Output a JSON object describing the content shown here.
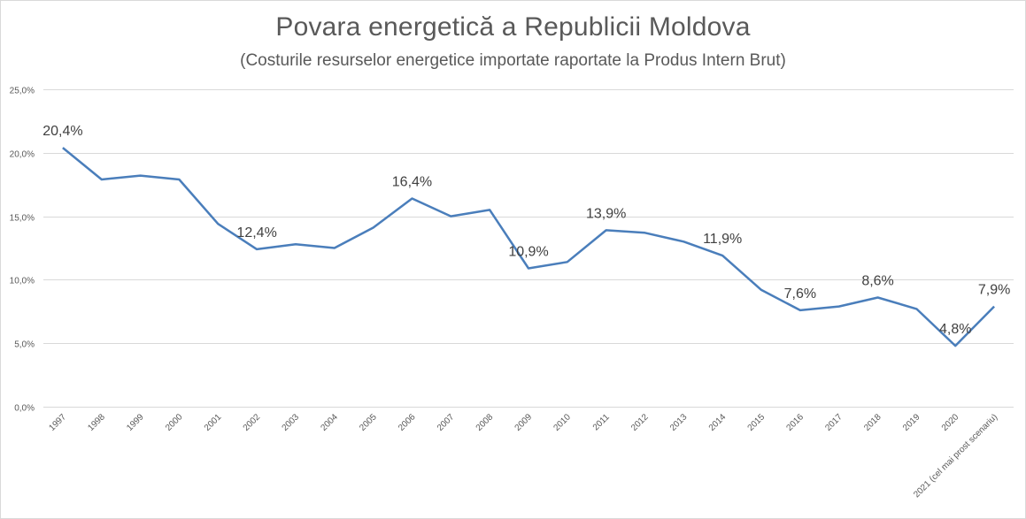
{
  "chart_data": {
    "type": "line",
    "title": "Povara energetică  a Republicii  Moldova",
    "subtitle": "(Costurile resurselor energetice importate raportate la Produs Intern Brut)",
    "xlabel": "",
    "ylabel": "",
    "ylim": [
      0,
      25
    ],
    "y_ticks": [
      0,
      5,
      10,
      15,
      20,
      25
    ],
    "y_tick_labels": [
      "0,0%",
      "5,0%",
      "10,0%",
      "15,0%",
      "20,0%",
      "25,0%"
    ],
    "grid": true,
    "legend": "none",
    "categories": [
      "1997",
      "1998",
      "1999",
      "2000",
      "2001",
      "2002",
      "2003",
      "2004",
      "2005",
      "2006",
      "2007",
      "2008",
      "2009",
      "2010",
      "2011",
      "2012",
      "2013",
      "2014",
      "2015",
      "2016",
      "2017",
      "2018",
      "2019",
      "2020",
      "2021 (cel mai prost scenariu)"
    ],
    "series": [
      {
        "name": "Povara energetică",
        "color": "#4a7ebb",
        "values": [
          20.4,
          17.9,
          18.2,
          17.9,
          14.4,
          12.4,
          12.8,
          12.5,
          14.1,
          16.4,
          15.0,
          15.5,
          10.9,
          11.4,
          13.9,
          13.7,
          13.0,
          11.9,
          9.2,
          7.6,
          7.9,
          8.6,
          7.7,
          4.8,
          7.9
        ]
      }
    ],
    "data_labels": [
      {
        "index": 0,
        "text": "20,4%"
      },
      {
        "index": 5,
        "text": "12,4%"
      },
      {
        "index": 9,
        "text": "16,4%"
      },
      {
        "index": 12,
        "text": "10,9%"
      },
      {
        "index": 14,
        "text": "13,9%"
      },
      {
        "index": 17,
        "text": "11,9%"
      },
      {
        "index": 19,
        "text": "7,6%"
      },
      {
        "index": 21,
        "text": "8,6%"
      },
      {
        "index": 23,
        "text": "4,8%"
      },
      {
        "index": 24,
        "text": "7,9%"
      }
    ]
  }
}
